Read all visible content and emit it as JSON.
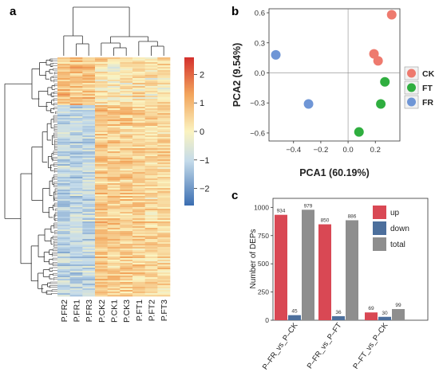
{
  "panels": {
    "a": "a",
    "b": "b",
    "c": "c"
  },
  "chart_data": [
    {
      "type": "heatmap",
      "panel": "a",
      "columns": [
        "P.FR2",
        "P.FR1",
        "P.FR3",
        "P.CK2",
        "P.CK1",
        "P.CK3",
        "P.FT1",
        "P.FT2",
        "P.FT3"
      ],
      "colorbar": {
        "ticks": [
          2,
          1,
          0,
          -1,
          -2
        ],
        "tick_labels": [
          "2",
          "1",
          "0",
          "−1",
          "−2"
        ],
        "range": [
          -2.6,
          2.6
        ],
        "colors": [
          "#3a6db1",
          "#c4dbea",
          "#fbf3c0",
          "#f2a55c",
          "#d4312d"
        ]
      },
      "column_group_means": [
        -1.0,
        -1.0,
        -0.9,
        0.7,
        0.6,
        0.6,
        0.5,
        0.45,
        0.5
      ]
    },
    {
      "type": "scatter",
      "panel": "b",
      "xlabel": "PCA1 (60.19%)",
      "ylabel": "PCA2 (9.54%)",
      "xlim": [
        -0.58,
        0.38
      ],
      "ylim": [
        -0.68,
        0.64
      ],
      "xticks": [
        -0.4,
        -0.2,
        0.0,
        0.2
      ],
      "xtick_labels": [
        "−0.4",
        "−0.2",
        "0.0",
        "0.2"
      ],
      "yticks": [
        0.6,
        0.3,
        0.0,
        -0.3,
        -0.6
      ],
      "ytick_labels": [
        "0.6",
        "0.3",
        "0.0",
        "−0.3",
        "−0.6"
      ],
      "legend": "right",
      "series": [
        {
          "name": "CK",
          "color": "#ee7a6e",
          "points": [
            [
              0.32,
              0.58
            ],
            [
              0.19,
              0.19
            ],
            [
              0.22,
              0.12
            ]
          ]
        },
        {
          "name": "FT",
          "color": "#2fae3f",
          "points": [
            [
              0.27,
              -0.09
            ],
            [
              0.24,
              -0.31
            ],
            [
              0.08,
              -0.59
            ]
          ]
        },
        {
          "name": "FR",
          "color": "#6f96d6",
          "points": [
            [
              -0.53,
              0.18
            ],
            [
              -0.29,
              -0.31
            ]
          ]
        }
      ]
    },
    {
      "type": "bar",
      "panel": "c",
      "ylabel": "Number of DEPs",
      "ylim": [
        0,
        1080
      ],
      "yticks": [
        0,
        250,
        500,
        750,
        1000
      ],
      "ytick_labels": [
        "0",
        "250",
        "500",
        "750",
        "1000"
      ],
      "categories": [
        "P–FR_vs_P–CK",
        "P–FR_vs_P–FT",
        "P–FT_vs_P–CK"
      ],
      "legend": "top-right",
      "series": [
        {
          "name": "up",
          "color": "#d94854",
          "values": [
            934,
            850,
            69
          ],
          "labels": [
            "934",
            "850",
            "69"
          ]
        },
        {
          "name": "down",
          "color": "#4c6f9c",
          "values": [
            45,
            36,
            30
          ],
          "labels": [
            "45",
            "36",
            "30"
          ]
        },
        {
          "name": "total",
          "color": "#8e8e8e",
          "values": [
            979,
            886,
            99
          ],
          "labels": [
            "979",
            "886",
            "99"
          ]
        }
      ]
    }
  ]
}
